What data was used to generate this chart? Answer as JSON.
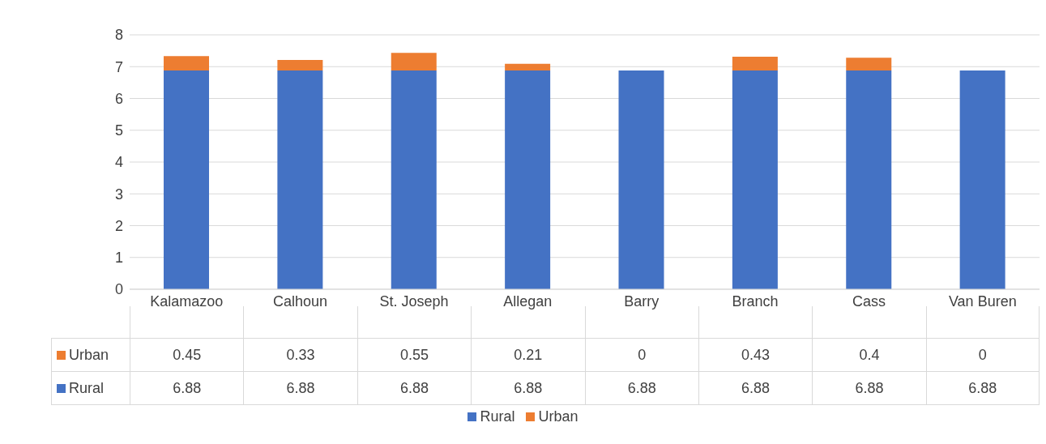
{
  "chart_data": {
    "type": "bar",
    "stacked": true,
    "categories": [
      "Kalamazoo",
      "Calhoun",
      "St. Joseph",
      "Allegan",
      "Barry",
      "Branch",
      "Cass",
      "Van Buren"
    ],
    "series": [
      {
        "name": "Rural",
        "color": "#4472c4",
        "values": [
          6.88,
          6.88,
          6.88,
          6.88,
          6.88,
          6.88,
          6.88,
          6.88
        ]
      },
      {
        "name": "Urban",
        "color": "#ed7d31",
        "values": [
          0.45,
          0.33,
          0.55,
          0.21,
          0,
          0.43,
          0.4,
          0
        ]
      }
    ],
    "ylim": [
      0,
      8
    ],
    "yticks": [
      0,
      1,
      2,
      3,
      4,
      5,
      6,
      7,
      8
    ],
    "grid": "y",
    "legend": "bottom",
    "data_labels": true
  }
}
